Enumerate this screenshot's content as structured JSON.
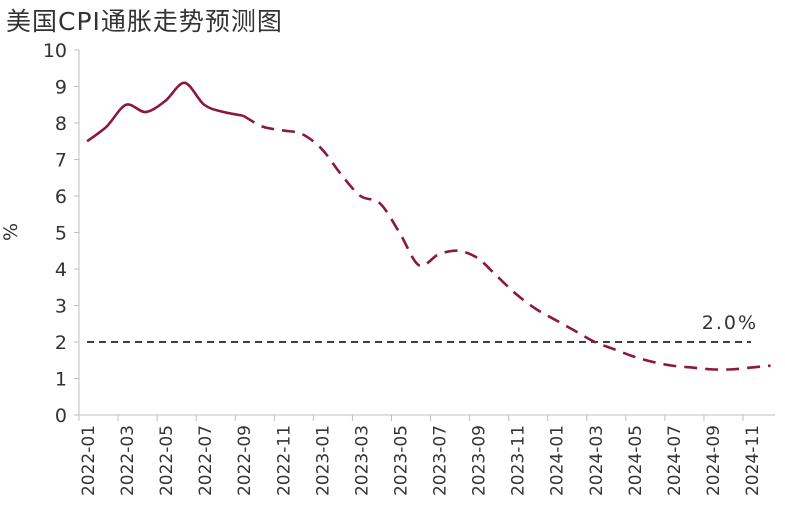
{
  "chart_data": {
    "type": "line",
    "title": "美国CPI通胀走势预测图",
    "xlabel": "",
    "ylabel": "%",
    "ylim": [
      0,
      10
    ],
    "yticks": [
      0,
      1,
      2,
      3,
      4,
      5,
      6,
      7,
      8,
      9,
      10
    ],
    "x": [
      "2022-01",
      "2022-02",
      "2022-03",
      "2022-04",
      "2022-05",
      "2022-06",
      "2022-07",
      "2022-08",
      "2022-09",
      "2022-10",
      "2022-11",
      "2022-12",
      "2023-01",
      "2023-02",
      "2023-03",
      "2023-04",
      "2023-05",
      "2023-06",
      "2023-07",
      "2023-08",
      "2023-09",
      "2023-10",
      "2023-11",
      "2023-12",
      "2024-01",
      "2024-02",
      "2024-03",
      "2024-04",
      "2024-05",
      "2024-06",
      "2024-07",
      "2024-08",
      "2024-09",
      "2024-10",
      "2024-11",
      "2024-12"
    ],
    "xtick_labels": [
      "2022-01",
      "2022-03",
      "2022-05",
      "2022-07",
      "2022-09",
      "2022-11",
      "2023-01",
      "2023-03",
      "2023-05",
      "2023-07",
      "2023-09",
      "2023-11",
      "2024-01",
      "2024-03",
      "2024-05",
      "2024-07",
      "2024-09",
      "2024-11"
    ],
    "series": [
      {
        "style": "solid",
        "color": "#8B1A3A",
        "x": [
          "2022-01",
          "2022-02",
          "2022-03",
          "2022-04",
          "2022-05",
          "2022-06",
          "2022-07",
          "2022-08",
          "2022-09"
        ],
        "values": [
          7.5,
          7.9,
          8.5,
          8.3,
          8.6,
          9.1,
          8.5,
          8.3,
          8.2
        ]
      },
      {
        "style": "dashed",
        "color": "#8B1A3A",
        "x": [
          "2022-09",
          "2022-10",
          "2022-11",
          "2022-12",
          "2023-01",
          "2023-02",
          "2023-03",
          "2023-04",
          "2023-05",
          "2023-06",
          "2023-07",
          "2023-08",
          "2023-09",
          "2023-10",
          "2023-11",
          "2023-12",
          "2024-01",
          "2024-02",
          "2024-03",
          "2024-04",
          "2024-05",
          "2024-06",
          "2024-07",
          "2024-08",
          "2024-09",
          "2024-10",
          "2024-11",
          "2024-12"
        ],
        "values": [
          8.2,
          7.9,
          7.8,
          7.7,
          7.3,
          6.6,
          6.0,
          5.8,
          5.0,
          4.1,
          4.4,
          4.5,
          4.3,
          3.8,
          3.3,
          2.9,
          2.6,
          2.3,
          2.0,
          1.8,
          1.6,
          1.45,
          1.35,
          1.3,
          1.25,
          1.25,
          1.3,
          1.35
        ]
      }
    ],
    "reference_line": {
      "y": 2.0,
      "label": "2.0%",
      "color": "#000000",
      "x_start": "2022-01",
      "x_end": "2024-11"
    },
    "grid": false,
    "legend": "none"
  }
}
